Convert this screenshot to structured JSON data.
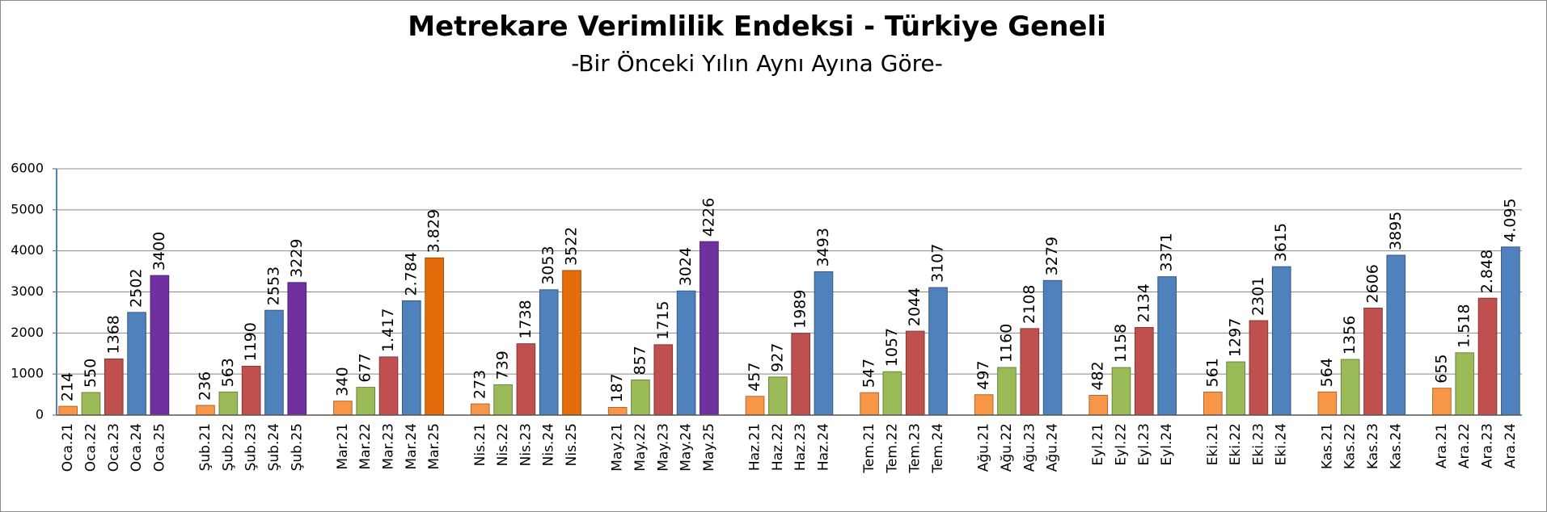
{
  "chart_data": {
    "type": "bar",
    "title": "Metrekare Verimlilik Endeksi - Türkiye Geneli",
    "subtitle": "-Bir Önceki Yılın Aynı Ayına Göre-",
    "categories": [
      "Oca.21",
      "Oca.22",
      "Oca.23",
      "Oca.24",
      "Oca.25",
      null,
      "Şub.21",
      "Şub.22",
      "Şub.23",
      "Şub.24",
      "Şub.25",
      null,
      "Mar.21",
      "Mar.22",
      "Mar.23",
      "Mar.24",
      "Mar.25",
      null,
      "Nis.21",
      "Nis.22",
      "Nis.23",
      "Nis.24",
      "Nis.25",
      null,
      "May.21",
      "May.22",
      "May.23",
      "May.24",
      "May.25",
      null,
      "Haz.21",
      "Haz.22",
      "Haz.23",
      "Haz.24",
      null,
      "Tem.21",
      "Tem.22",
      "Tem.23",
      "Tem.24",
      null,
      "Ağu.21",
      "Ağu.22",
      "Ağu.23",
      "Ağu.24",
      null,
      "Eyl.21",
      "Eyl.22",
      "Eyl.23",
      "Eyl.24",
      null,
      "Eki.21",
      "Eki.22",
      "Eki.23",
      "Eki.24",
      null,
      "Kas.21",
      "Kas.22",
      "Kas.23",
      "Kas.24",
      null,
      "Ara.21",
      "Ara.22",
      "Ara.23",
      "Ara.24"
    ],
    "values": [
      214,
      550,
      1368,
      2502,
      3400,
      null,
      236,
      563,
      1190,
      2553,
      3229,
      null,
      340,
      677,
      1417,
      2784,
      3829,
      null,
      273,
      739,
      1738,
      3053,
      3522,
      null,
      187,
      857,
      1715,
      3024,
      4226,
      null,
      457,
      927,
      1989,
      3493,
      null,
      547,
      1057,
      2044,
      3107,
      null,
      497,
      1160,
      2108,
      3279,
      null,
      482,
      1158,
      2134,
      3371,
      null,
      561,
      1297,
      2301,
      3615,
      null,
      564,
      1356,
      2606,
      3895,
      null,
      655,
      1518,
      2848,
      4095
    ],
    "value_labels": [
      "214",
      "550",
      "1368",
      "2502",
      "3400",
      null,
      "236",
      "563",
      "1190",
      "2553",
      "3229",
      null,
      "340",
      "677",
      "1.417",
      "2.784",
      "3.829",
      null,
      "273",
      "739",
      "1738",
      "3053",
      "3522",
      null,
      "187",
      "857",
      "1715",
      "3024",
      "4226",
      null,
      "457",
      "927",
      "1989",
      "3493",
      null,
      "547",
      "1057",
      "2044",
      "3107",
      null,
      "497",
      "1160",
      "2108",
      "3279",
      null,
      "482",
      "1158",
      "2134",
      "3371",
      null,
      "561",
      "1297",
      "2301",
      "3615",
      null,
      "564",
      "1356",
      "2606",
      "3895",
      null,
      "655",
      "1.518",
      "2.848",
      "4.095"
    ],
    "colors": [
      "#f79646",
      "#9bbb59",
      "#c0504d",
      "#4f81bd",
      "#7030a0",
      null,
      "#f79646",
      "#9bbb59",
      "#c0504d",
      "#4f81bd",
      "#7030a0",
      null,
      "#f79646",
      "#9bbb59",
      "#c0504d",
      "#4f81bd",
      "#e46c0a",
      null,
      "#f79646",
      "#9bbb59",
      "#c0504d",
      "#4f81bd",
      "#e46c0a",
      null,
      "#f79646",
      "#9bbb59",
      "#c0504d",
      "#4f81bd",
      "#7030a0",
      null,
      "#f79646",
      "#9bbb59",
      "#c0504d",
      "#4f81bd",
      null,
      "#f79646",
      "#9bbb59",
      "#c0504d",
      "#4f81bd",
      null,
      "#f79646",
      "#9bbb59",
      "#c0504d",
      "#4f81bd",
      null,
      "#f79646",
      "#9bbb59",
      "#c0504d",
      "#4f81bd",
      null,
      "#f79646",
      "#9bbb59",
      "#c0504d",
      "#4f81bd",
      null,
      "#f79646",
      "#9bbb59",
      "#c0504d",
      "#4f81bd",
      null,
      "#f79646",
      "#9bbb59",
      "#c0504d",
      "#4f81bd"
    ],
    "ylim": [
      0,
      6000
    ],
    "yticks": [
      0,
      1000,
      2000,
      3000,
      4000,
      5000,
      6000
    ],
    "grid": true
  }
}
